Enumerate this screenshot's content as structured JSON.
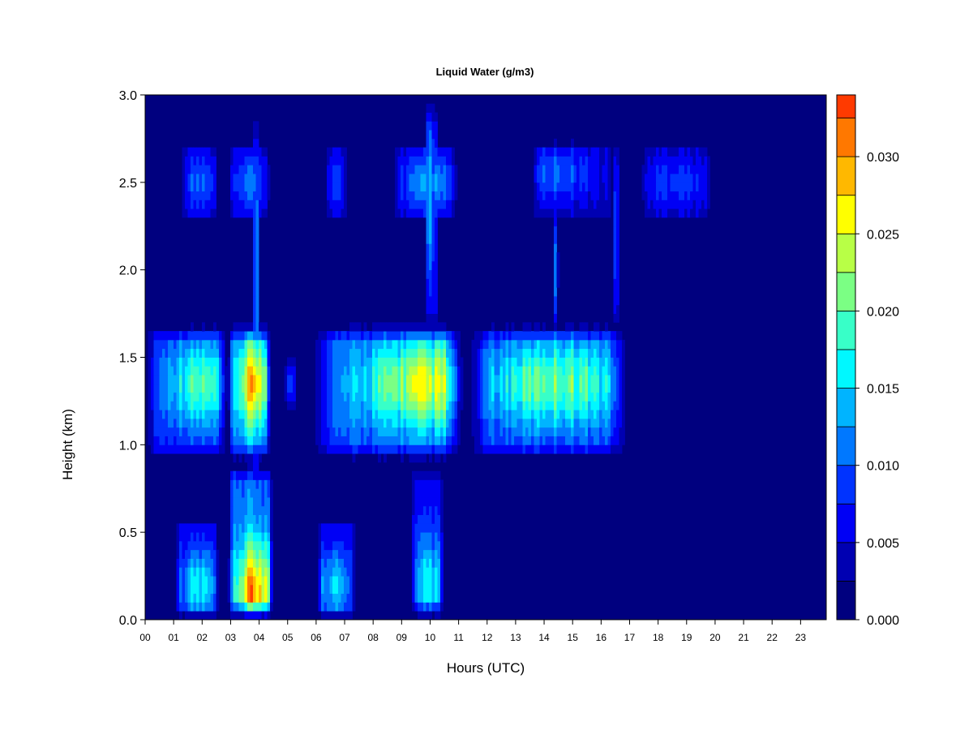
{
  "chart_data": {
    "type": "heatmap",
    "title": "Liquid Water (g/m3)",
    "xlabel": "Hours (UTC)",
    "ylabel": "Height (km)",
    "xlim": [
      0,
      23.9
    ],
    "ylim": [
      0,
      3.0
    ],
    "x_ticks": [
      0,
      1,
      2,
      3,
      4,
      5,
      6,
      7,
      8,
      9,
      10,
      11,
      12,
      13,
      14,
      15,
      16,
      17,
      18,
      19,
      20,
      21,
      22,
      23
    ],
    "x_tick_labels": [
      "00",
      "01",
      "02",
      "03",
      "04",
      "05",
      "06",
      "07",
      "08",
      "09",
      "10",
      "11",
      "12",
      "13",
      "14",
      "15",
      "16",
      "17",
      "18",
      "19",
      "20",
      "21",
      "22",
      "23"
    ],
    "y_ticks": [
      0.0,
      0.5,
      1.0,
      1.5,
      2.0,
      2.5,
      3.0
    ],
    "y_tick_labels": [
      "0.0",
      "0.5",
      "1.0",
      "1.5",
      "2.0",
      "2.5",
      "3.0"
    ],
    "colorbar": {
      "range": [
        0.0,
        0.034
      ],
      "levels": [
        0.0,
        0.0025,
        0.005,
        0.0075,
        0.01,
        0.0125,
        0.015,
        0.0175,
        0.02,
        0.0225,
        0.025,
        0.0275,
        0.03,
        0.0325,
        0.034
      ],
      "colors": [
        "#00007F",
        "#0000B2",
        "#0000F5",
        "#0033FF",
        "#0078FF",
        "#00B4FF",
        "#00F8FF",
        "#38FFC8",
        "#7BFF84",
        "#B8FF46",
        "#FFFF00",
        "#FFB800",
        "#FF7800",
        "#FF3A00",
        "#EE0000",
        "#7F0000"
      ],
      "tick_values": [
        0.0,
        0.005,
        0.01,
        0.015,
        0.02,
        0.025,
        0.03
      ],
      "tick_labels": [
        "0.000",
        "0.005",
        "0.010",
        "0.015",
        "0.020",
        "0.025",
        "0.030"
      ]
    },
    "background_value": 0.0,
    "regions": [
      {
        "x": [
          0.0,
          2.9
        ],
        "y": [
          0.9,
          1.7
        ],
        "peak": 0.019,
        "center": [
          1.9,
          1.35
        ]
      },
      {
        "x": [
          2.9,
          4.4
        ],
        "y": [
          0.9,
          1.7
        ],
        "peak": 0.028,
        "center": [
          3.85,
          1.35
        ]
      },
      {
        "x": [
          4.9,
          5.3
        ],
        "y": [
          1.2,
          1.5
        ],
        "peak": 0.011,
        "center": [
          5.1,
          1.35
        ]
      },
      {
        "x": [
          5.8,
          11.2
        ],
        "y": [
          0.9,
          1.7
        ],
        "peak": 0.024,
        "center": [
          9.9,
          1.35
        ]
      },
      {
        "x": [
          11.3,
          17.0
        ],
        "y": [
          0.9,
          1.7
        ],
        "peak": 0.021,
        "center": [
          14.4,
          1.35
        ]
      },
      {
        "x": [
          1.0,
          2.6
        ],
        "y": [
          0.0,
          0.6
        ],
        "peak": 0.016,
        "center": [
          1.9,
          0.2
        ]
      },
      {
        "x": [
          2.9,
          4.5
        ],
        "y": [
          0.0,
          0.9
        ],
        "peak": 0.03,
        "center": [
          3.9,
          0.15
        ]
      },
      {
        "x": [
          6.0,
          7.4
        ],
        "y": [
          0.0,
          0.6
        ],
        "peak": 0.015,
        "center": [
          6.6,
          0.2
        ]
      },
      {
        "x": [
          9.3,
          10.5
        ],
        "y": [
          0.0,
          0.9
        ],
        "peak": 0.016,
        "center": [
          10.0,
          0.2
        ]
      },
      {
        "x": [
          1.2,
          2.6
        ],
        "y": [
          2.25,
          2.75
        ],
        "peak": 0.01,
        "center": [
          1.9,
          2.5
        ]
      },
      {
        "x": [
          2.9,
          4.4
        ],
        "y": [
          2.25,
          2.75
        ],
        "peak": 0.011,
        "center": [
          3.7,
          2.5
        ]
      },
      {
        "x": [
          6.3,
          7.1
        ],
        "y": [
          2.25,
          2.75
        ],
        "peak": 0.009,
        "center": [
          6.7,
          2.5
        ]
      },
      {
        "x": [
          8.6,
          11.0
        ],
        "y": [
          2.25,
          2.75
        ],
        "peak": 0.012,
        "center": [
          10.0,
          2.5
        ]
      },
      {
        "x": [
          13.5,
          16.6
        ],
        "y": [
          2.25,
          2.75
        ],
        "peak": 0.011,
        "center": [
          14.3,
          2.55
        ]
      },
      {
        "x": [
          17.3,
          20.0
        ],
        "y": [
          2.25,
          2.75
        ],
        "peak": 0.009,
        "center": [
          18.6,
          2.5
        ]
      },
      {
        "x": [
          3.8,
          4.0
        ],
        "y": [
          0.0,
          3.0
        ],
        "peak": 0.013,
        "center": [
          3.9,
          2.0
        ]
      },
      {
        "x": [
          9.85,
          10.25
        ],
        "y": [
          1.6,
          3.0
        ],
        "peak": 0.014,
        "center": [
          10.0,
          2.4
        ]
      },
      {
        "x": [
          14.3,
          14.5
        ],
        "y": [
          1.6,
          2.4
        ],
        "peak": 0.011,
        "center": [
          14.4,
          2.0
        ]
      },
      {
        "x": [
          16.45,
          16.65
        ],
        "y": [
          1.6,
          2.8
        ],
        "peak": 0.01,
        "center": [
          16.5,
          2.2
        ]
      }
    ]
  }
}
